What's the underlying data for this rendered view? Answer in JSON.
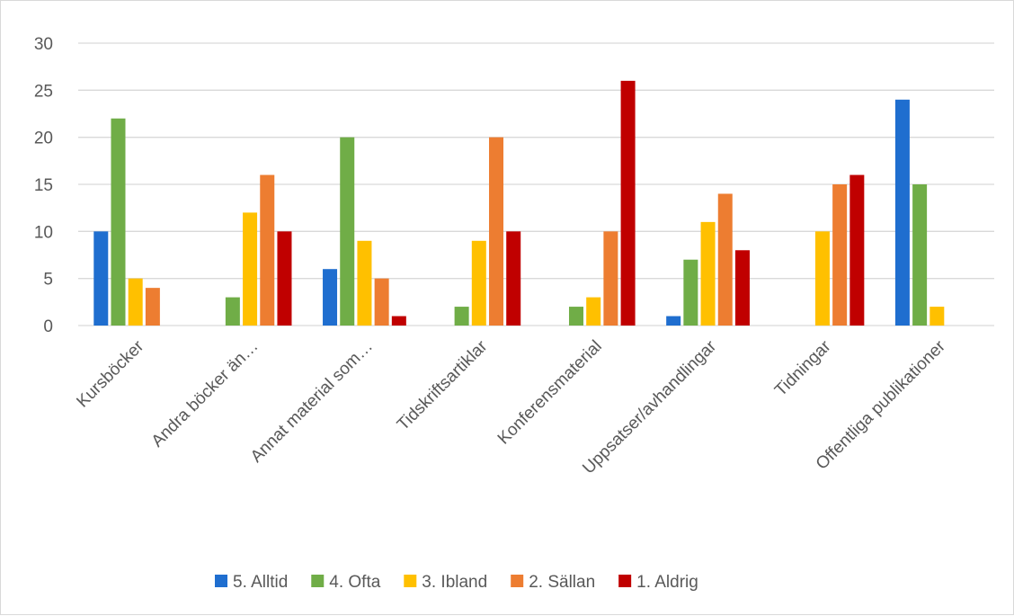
{
  "chart_data": {
    "type": "bar",
    "title": "",
    "xlabel": "",
    "ylabel": "",
    "ylim": [
      0,
      30
    ],
    "yticks": [
      0,
      5,
      10,
      15,
      20,
      25,
      30
    ],
    "grid": "horizontal",
    "legend_position": "bottom",
    "categories": [
      "Kursböcker",
      "Andra böcker än…",
      "Annat material som…",
      "Tidskriftsartiklar",
      "Konferensmaterial",
      "Uppsatser/avhandlingar",
      "Tidningar",
      "Offentliga publikationer"
    ],
    "series": [
      {
        "name": "5. Alltid",
        "color": "#1f6ecf",
        "values": [
          10,
          0,
          6,
          0,
          0,
          1,
          0,
          24
        ]
      },
      {
        "name": "4. Ofta",
        "color": "#70ad47",
        "values": [
          22,
          3,
          20,
          2,
          2,
          7,
          0,
          15
        ]
      },
      {
        "name": "3. Ibland",
        "color": "#ffc000",
        "values": [
          5,
          12,
          9,
          9,
          3,
          11,
          10,
          2
        ]
      },
      {
        "name": "2. Sällan",
        "color": "#ed7d31",
        "values": [
          4,
          16,
          5,
          20,
          10,
          14,
          15,
          0
        ]
      },
      {
        "name": "1. Aldrig",
        "color": "#c00000",
        "values": [
          0,
          10,
          1,
          10,
          26,
          8,
          16,
          0
        ]
      }
    ]
  }
}
